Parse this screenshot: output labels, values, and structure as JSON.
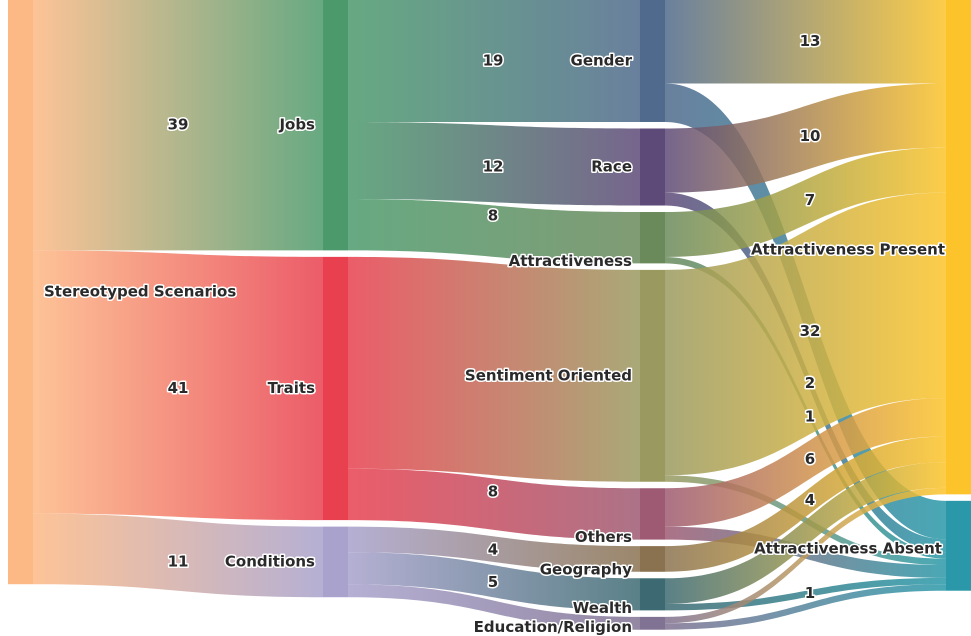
{
  "nodes": [
    {
      "name": "Stereotyped Scenarios",
      "value": 91,
      "column": 0,
      "color": "#fdb985"
    },
    {
      "name": "Jobs",
      "value": 39,
      "column": 1,
      "color": "#4c9a6c",
      "labeled": true
    },
    {
      "name": "Traits",
      "value": 41,
      "column": 1,
      "color": "#e8404f",
      "labeled": true
    },
    {
      "name": "Conditions",
      "value": 11,
      "column": 1,
      "color": "#a8a2cc",
      "labeled": true
    },
    {
      "name": "Gender",
      "value": 19,
      "column": 2,
      "color": "#4f6a8c",
      "labeled": true
    },
    {
      "name": "Race",
      "value": 12,
      "column": 2,
      "color": "#5e4a78",
      "labeled": true
    },
    {
      "name": "Attractiveness",
      "value": 8,
      "column": 2,
      "color": "#6a8a5c",
      "labeled": true
    },
    {
      "name": "Sentiment Oriented",
      "value": 33,
      "column": 2,
      "color": "#9a9a60"
    },
    {
      "name": "Others",
      "value": 8,
      "column": 2,
      "color": "#9e5a72",
      "labeled": true
    },
    {
      "name": "Geography",
      "value": 4,
      "column": 2,
      "color": "#8a7250",
      "labeled": true
    },
    {
      "name": "Wealth",
      "value": 5,
      "column": 2,
      "color": "#3d6a72",
      "labeled": true
    },
    {
      "name": "Education/Religion",
      "value": 2,
      "column": 2,
      "color": "#807292"
    },
    {
      "name": "Attractiveness Present",
      "value": 77,
      "column": 3,
      "color": "#fcc42a"
    },
    {
      "name": "Attractiveness Absent",
      "value": 14,
      "column": 3,
      "color": "#2a98a8"
    }
  ],
  "links": [
    {
      "source": 0,
      "target": 1,
      "value": 39
    },
    {
      "source": 0,
      "target": 2,
      "value": 41
    },
    {
      "source": 0,
      "target": 3,
      "value": 11
    },
    {
      "source": 1,
      "target": 4,
      "value": 19
    },
    {
      "source": 1,
      "target": 5,
      "value": 12
    },
    {
      "source": 1,
      "target": 6,
      "value": 8
    },
    {
      "source": 2,
      "target": 7,
      "value": 33
    },
    {
      "source": 2,
      "target": 8,
      "value": 8
    },
    {
      "source": 3,
      "target": 9,
      "value": 4
    },
    {
      "source": 3,
      "target": 10,
      "value": 5
    },
    {
      "source": 3,
      "target": 11,
      "value": 2
    },
    {
      "source": 4,
      "target": 12,
      "value": 13,
      "labeled": true
    },
    {
      "source": 4,
      "target": 13,
      "value": 6
    },
    {
      "source": 5,
      "target": 12,
      "value": 10,
      "labeled": true
    },
    {
      "source": 5,
      "target": 13,
      "value": 2,
      "labeled": true
    },
    {
      "source": 6,
      "target": 12,
      "value": 7,
      "labeled": true
    },
    {
      "source": 6,
      "target": 13,
      "value": 1,
      "labeled": true
    },
    {
      "source": 7,
      "target": 12,
      "value": 32,
      "labeled": true
    },
    {
      "source": 7,
      "target": 13,
      "value": 1
    },
    {
      "source": 8,
      "target": 12,
      "value": 6,
      "labeled": true
    },
    {
      "source": 8,
      "target": 13,
      "value": 2
    },
    {
      "source": 9,
      "target": 12,
      "value": 4,
      "labeled": true
    },
    {
      "source": 10,
      "target": 12,
      "value": 4
    },
    {
      "source": 10,
      "target": 13,
      "value": 1,
      "labeled": true
    },
    {
      "source": 11,
      "target": 12,
      "value": 1
    },
    {
      "source": 11,
      "target": 13,
      "value": 1
    }
  ]
}
